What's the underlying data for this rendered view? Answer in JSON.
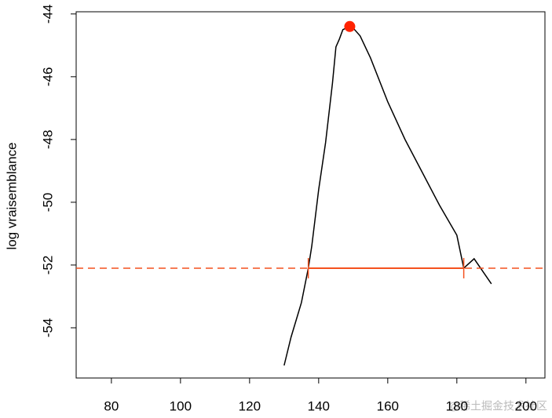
{
  "chart_data": {
    "type": "line",
    "y_label": "log vraisemblance",
    "watermark": "@稀土掘金技术社区",
    "x": [
      130,
      132,
      135,
      137,
      138,
      140,
      142,
      144,
      145,
      146,
      147,
      148,
      149,
      150,
      152,
      155,
      160,
      165,
      170,
      175,
      180,
      182,
      185,
      190
    ],
    "series": [
      {
        "color": "#000000",
        "values": [
          -55.2,
          -54.3,
          -53.2,
          -52.1,
          -51.4,
          -49.6,
          -48.1,
          -46.2,
          -45.05,
          -44.8,
          -44.5,
          -44.45,
          -44.4,
          -44.45,
          -44.7,
          -45.4,
          -46.8,
          -48.0,
          -49.05,
          -50.1,
          -51.05,
          -52.1,
          -51.8,
          -52.6
        ]
      }
    ],
    "max_point": {
      "x": 149,
      "y": -44.4,
      "color": "#ff2200"
    },
    "threshold": -52.1,
    "threshold_color": "#f4511e",
    "interval": [
      137,
      182
    ],
    "xlim": [
      69.8,
      205.5
    ],
    "ylim": [
      -55.6,
      -43.93
    ],
    "xticks": [
      80,
      100,
      120,
      140,
      160,
      180,
      200
    ],
    "yticks": [
      -54,
      -52,
      -50,
      -48,
      -46,
      -44
    ]
  }
}
